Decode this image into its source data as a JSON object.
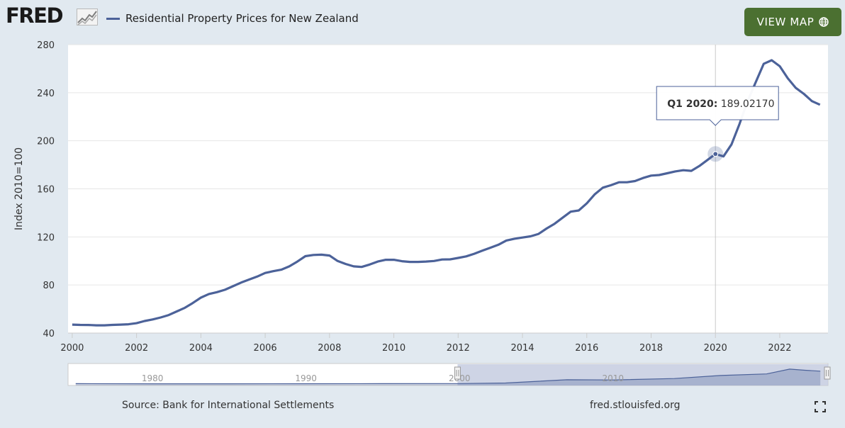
{
  "header": {
    "logo_text": "FRED",
    "series_name": "Residential Property Prices for New Zealand",
    "view_map_label": "VIEW MAP"
  },
  "footer": {
    "source": "Source: Bank for International Settlements",
    "credit": "fred.stlouisfed.org"
  },
  "tooltip": {
    "period": "Q1 2020:",
    "value": "189.02170"
  },
  "navigator": {
    "labels": [
      "1980",
      "1990",
      "2000",
      "2010"
    ]
  },
  "colors": {
    "series": "#4c6299",
    "background": "#e1e9f0",
    "button": "#4b7031"
  },
  "icons": {
    "logo": "fred-chart-logo-icon",
    "map": "globe-icon",
    "fullscreen": "fullscreen-icon"
  },
  "chart_data": {
    "type": "line",
    "title": "",
    "xlabel": "",
    "ylabel": "Index 2010=100",
    "ylim": [
      40,
      280
    ],
    "yticks": [
      40,
      80,
      120,
      160,
      200,
      240,
      280
    ],
    "xlim": [
      1999.87,
      2023.5
    ],
    "xticks": [
      "2000",
      "2002",
      "2004",
      "2006",
      "2008",
      "2010",
      "2012",
      "2014",
      "2016",
      "2018",
      "2020",
      "2022"
    ],
    "grid": true,
    "legend": "top-left",
    "series": [
      {
        "name": "Residential Property Prices for New Zealand",
        "x": [
          "Q1 2000",
          "Q2 2000",
          "Q3 2000",
          "Q4 2000",
          "Q1 2001",
          "Q2 2001",
          "Q3 2001",
          "Q4 2001",
          "Q1 2002",
          "Q2 2002",
          "Q3 2002",
          "Q4 2002",
          "Q1 2003",
          "Q2 2003",
          "Q3 2003",
          "Q4 2003",
          "Q1 2004",
          "Q2 2004",
          "Q3 2004",
          "Q4 2004",
          "Q1 2005",
          "Q2 2005",
          "Q3 2005",
          "Q4 2005",
          "Q1 2006",
          "Q2 2006",
          "Q3 2006",
          "Q4 2006",
          "Q1 2007",
          "Q2 2007",
          "Q3 2007",
          "Q4 2007",
          "Q1 2008",
          "Q2 2008",
          "Q3 2008",
          "Q4 2008",
          "Q1 2009",
          "Q2 2009",
          "Q3 2009",
          "Q4 2009",
          "Q1 2010",
          "Q2 2010",
          "Q3 2010",
          "Q4 2010",
          "Q1 2011",
          "Q2 2011",
          "Q3 2011",
          "Q4 2011",
          "Q1 2012",
          "Q2 2012",
          "Q3 2012",
          "Q4 2012",
          "Q1 2013",
          "Q2 2013",
          "Q3 2013",
          "Q4 2013",
          "Q1 2014",
          "Q2 2014",
          "Q3 2014",
          "Q4 2014",
          "Q1 2015",
          "Q2 2015",
          "Q3 2015",
          "Q4 2015",
          "Q1 2016",
          "Q2 2016",
          "Q3 2016",
          "Q4 2016",
          "Q1 2017",
          "Q2 2017",
          "Q3 2017",
          "Q4 2017",
          "Q1 2018",
          "Q2 2018",
          "Q3 2018",
          "Q4 2018",
          "Q1 2019",
          "Q2 2019",
          "Q3 2019",
          "Q4 2019",
          "Q1 2020",
          "Q2 2020",
          "Q3 2020",
          "Q4 2020",
          "Q1 2021",
          "Q2 2021",
          "Q3 2021",
          "Q4 2021",
          "Q1 2022",
          "Q2 2022",
          "Q3 2022",
          "Q4 2022",
          "Q1 2023",
          "Q2 2023"
        ],
        "values": [
          47,
          46.8,
          46.7,
          46.4,
          46.4,
          46.8,
          47,
          47.3,
          48.2,
          50,
          51.3,
          53,
          55,
          58,
          61,
          65,
          69.5,
          72.5,
          74,
          76,
          79,
          82,
          84.5,
          87,
          90,
          91.5,
          92.7,
          95.5,
          99.5,
          104,
          105,
          105.2,
          104.5,
          100,
          97.5,
          95.5,
          95,
          97,
          99.5,
          101,
          101,
          99.8,
          99.2,
          99.2,
          99.5,
          100,
          101.2,
          101.3,
          102.5,
          103.8,
          106,
          108.5,
          111,
          113.5,
          117,
          118.5,
          119.5,
          120.5,
          122.5,
          127,
          131,
          136,
          141,
          142,
          148,
          155.5,
          161,
          163,
          165.5,
          165.5,
          166.5,
          169,
          171,
          171.5,
          173,
          174.5,
          175.5,
          175,
          179,
          184,
          189.0217,
          187,
          197,
          214,
          233,
          248.5,
          264,
          267,
          262,
          252,
          244,
          239,
          233,
          230
        ]
      }
    ],
    "highlight": {
      "period": "Q1 2020",
      "value": 189.0217
    }
  }
}
